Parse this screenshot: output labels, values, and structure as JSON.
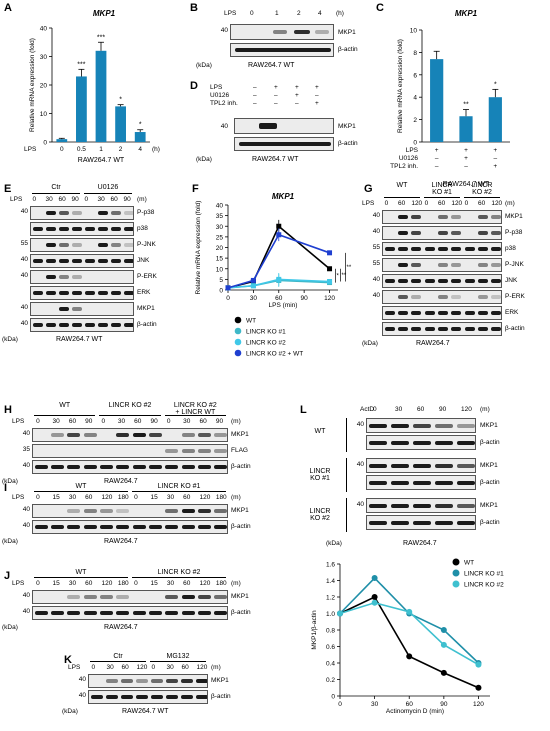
{
  "panels": {
    "A": {
      "letter": "A",
      "title": "MKP1",
      "ylabel": "Relative mRNA expression (fold)",
      "xprefix": "LPS",
      "xunit": "(h)",
      "cell": "RAW264.7 WT",
      "yticks": [
        "0",
        "10",
        "20",
        "30",
        "40"
      ],
      "chart_data": {
        "type": "bar",
        "categories": [
          "0",
          "0.5",
          "1",
          "2",
          "4"
        ],
        "values": [
          1,
          23,
          32,
          12.5,
          3.5
        ],
        "errors": [
          0.3,
          2.5,
          3,
          0.6,
          0.8
        ],
        "significance": [
          "",
          "***",
          "***",
          "*",
          "*"
        ],
        "ylim": [
          0,
          40
        ]
      }
    },
    "B": {
      "letter": "B",
      "lps": "LPS",
      "lanes": [
        "0",
        "1",
        "2",
        "4"
      ],
      "unit": "(h)",
      "mw": "40",
      "rows": [
        "MKP1",
        "β-actin"
      ],
      "kda": "(kDa)",
      "cell": "RAW264.7 WT"
    },
    "C": {
      "letter": "C",
      "title": "MKP1",
      "ylabel": "Relative mRNA expression (fold)",
      "yticks": [
        "0",
        "2",
        "4",
        "6",
        "8",
        "10"
      ],
      "rows": [
        {
          "label": "LPS",
          "marks": [
            "+",
            "+",
            "+"
          ]
        },
        {
          "label": "U0126",
          "marks": [
            "–",
            "+",
            "–"
          ]
        },
        {
          "label": "TPL2 inh.",
          "marks": [
            "–",
            "–",
            "+"
          ]
        }
      ],
      "cell": "RAW264.7 WT",
      "chart_data": {
        "type": "bar",
        "categories": [
          "LPS",
          "LPS+U0126",
          "LPS+TPL2 inh."
        ],
        "values": [
          7.4,
          2.3,
          4.0
        ],
        "errors": [
          0.7,
          0.6,
          0.7
        ],
        "significance": [
          "",
          "**",
          "*"
        ],
        "ylim": [
          0,
          10
        ]
      }
    },
    "D": {
      "letter": "D",
      "rows": [
        {
          "label": "LPS",
          "marks": [
            "–",
            "+",
            "+",
            "+"
          ]
        },
        {
          "label": "U0126",
          "marks": [
            "–",
            "–",
            "+",
            "–"
          ]
        },
        {
          "label": "TPL2 inh.",
          "marks": [
            "–",
            "–",
            "–",
            "+"
          ]
        }
      ],
      "mw": "40",
      "blots": [
        "MKP1",
        "β-actin"
      ],
      "kda": "(kDa)",
      "cell": "RAW264.7 WT"
    },
    "E": {
      "letter": "E",
      "groups": [
        "Ctr",
        "U0126"
      ],
      "lps": "LPS",
      "lanes": [
        "0",
        "30",
        "60",
        "90",
        "0",
        "30",
        "60",
        "90"
      ],
      "unit": "(m)",
      "rows": [
        "P-p38",
        "p38",
        "P-JNK",
        "JNK",
        "P-ERK",
        "ERK",
        "MKP1",
        "β-actin"
      ],
      "mws": [
        "40",
        "55",
        "40",
        "40",
        "40",
        "40"
      ],
      "kda": "(kDa)",
      "cell": "RAW264.7 WT"
    },
    "F": {
      "letter": "F",
      "title": "MKP1",
      "ylabel": "Relative mRNA expression (fold)",
      "xlabel": "LPS (min)",
      "xticks": [
        "0",
        "30",
        "60",
        "90",
        "120"
      ],
      "yticks": [
        "0",
        "5",
        "10",
        "15",
        "20",
        "25",
        "30",
        "35",
        "40"
      ],
      "sig": [
        "*",
        "**",
        "**"
      ],
      "legend": [
        {
          "name": "WT",
          "color": "#000000"
        },
        {
          "name": "LINCR KO #1",
          "color": "#3fb8c8"
        },
        {
          "name": "LINCR KO #2",
          "color": "#40c8e8"
        },
        {
          "name": "LINCR KO #2 + WT",
          "color": "#1f3fd0"
        }
      ],
      "chart_data": {
        "type": "line",
        "x": [
          0,
          30,
          60,
          120
        ],
        "series": [
          {
            "name": "WT",
            "values": [
              1,
              4,
              30,
              10
            ]
          },
          {
            "name": "LINCR KO #1",
            "values": [
              1,
              2,
              4.5,
              3.5
            ]
          },
          {
            "name": "LINCR KO #2",
            "values": [
              1,
              2,
              5,
              4
            ]
          },
          {
            "name": "LINCR KO #2 + WT",
            "values": [
              1,
              4.5,
              26,
              17.5
            ]
          }
        ],
        "errors": [
          0.3,
          0.5,
          3,
          1
        ],
        "xlim": [
          0,
          130
        ],
        "ylim": [
          0,
          40
        ]
      }
    },
    "G": {
      "letter": "G",
      "groups": [
        "WT",
        "LINCR\nKO #1",
        "LINCR\nKO #2"
      ],
      "lps": "LPS",
      "lanes": [
        "0",
        "60",
        "120",
        "0",
        "60",
        "120",
        "0",
        "60",
        "120"
      ],
      "unit": "(m)",
      "rows": [
        "MKP1",
        "P-p38",
        "p38",
        "P-JNK",
        "JNK",
        "P-ERK",
        "ERK",
        "β-actin"
      ],
      "mws": [
        "40",
        "40",
        "55",
        "55",
        "40",
        "40"
      ],
      "kda": "(kDa)",
      "cell": "RAW264.7"
    },
    "H": {
      "letter": "H",
      "groups": [
        "WT",
        "LINCR KO #2",
        "LINCR KO #2\n+ LINCR WT"
      ],
      "lps": "LPS",
      "lanes": [
        "0",
        "30",
        "60",
        "90",
        "0",
        "30",
        "60",
        "90",
        "0",
        "30",
        "60",
        "90"
      ],
      "unit": "(m)",
      "rows": [
        "MKP1",
        "FLAG",
        "β-actin"
      ],
      "mws": [
        "40",
        "35",
        "40"
      ],
      "kda": "(kDa)",
      "cell": "RAW264.7"
    },
    "I": {
      "letter": "I",
      "groups": [
        "WT",
        "LINCR KO #1"
      ],
      "lps": "LPS",
      "lanes": [
        "0",
        "15",
        "30",
        "60",
        "120",
        "180",
        "0",
        "15",
        "30",
        "60",
        "120",
        "180"
      ],
      "unit": "(m)",
      "rows": [
        "MKP1",
        "β-actin"
      ],
      "mws": [
        "40",
        "40"
      ],
      "kda": "(kDa)",
      "cell": "RAW264.7"
    },
    "J": {
      "letter": "J",
      "groups": [
        "WT",
        "LINCR KO #2"
      ],
      "lps": "LPS",
      "lanes": [
        "0",
        "15",
        "30",
        "60",
        "120",
        "180",
        "0",
        "15",
        "30",
        "60",
        "120",
        "180"
      ],
      "unit": "(m)",
      "rows": [
        "MKP1",
        "β-actin"
      ],
      "mws": [
        "40",
        "40"
      ],
      "kda": "(kDa)",
      "cell": "RAW264.7"
    },
    "K": {
      "letter": "K",
      "groups": [
        "Ctr",
        "MG132"
      ],
      "lps": "LPS",
      "lanes": [
        "0",
        "30",
        "60",
        "120",
        "0",
        "30",
        "60",
        "120"
      ],
      "unit": "(m)",
      "rows": [
        "MKP1",
        "β-actin"
      ],
      "mws": [
        "40",
        "40"
      ],
      "kda": "(kDa)",
      "cell": "RAW264.7 WT"
    },
    "L": {
      "letter": "L",
      "actd": "ActD",
      "lanes": [
        "0",
        "30",
        "60",
        "90",
        "120"
      ],
      "unit": "(m)",
      "groups": [
        "WT",
        "LINCR\nKO #1",
        "LINCR\nKO #2"
      ],
      "rows": [
        "MKP1",
        "β-actin"
      ],
      "mw": "40",
      "kda": "(kDa)",
      "cell": "RAW264.7",
      "ylabel": "MKP1/β-actin",
      "xlabel": "Actinomycin D (min)",
      "xticks": [
        "0",
        "30",
        "60",
        "90",
        "120"
      ],
      "yticks": [
        "0",
        "0.2",
        "0.4",
        "0.6",
        "0.8",
        "1.0",
        "1.2",
        "1.4",
        "1.6"
      ],
      "legend": [
        {
          "name": "WT",
          "color": "#000000"
        },
        {
          "name": "LINCR KO #1",
          "color": "#1f8fa8"
        },
        {
          "name": "LINCR KO #2",
          "color": "#3fc0cf"
        }
      ],
      "chart_data": {
        "type": "line",
        "x": [
          0,
          30,
          60,
          90,
          120
        ],
        "series": [
          {
            "name": "WT",
            "values": [
              1.0,
              1.2,
              0.48,
              0.28,
              0.1
            ]
          },
          {
            "name": "LINCR KO #1",
            "values": [
              1.0,
              1.43,
              1.0,
              0.8,
              0.4
            ]
          },
          {
            "name": "LINCR KO #2",
            "values": [
              1.0,
              1.13,
              1.02,
              0.62,
              0.38
            ]
          }
        ],
        "xlim": [
          0,
          130
        ],
        "ylim": [
          0,
          1.6
        ]
      }
    }
  }
}
